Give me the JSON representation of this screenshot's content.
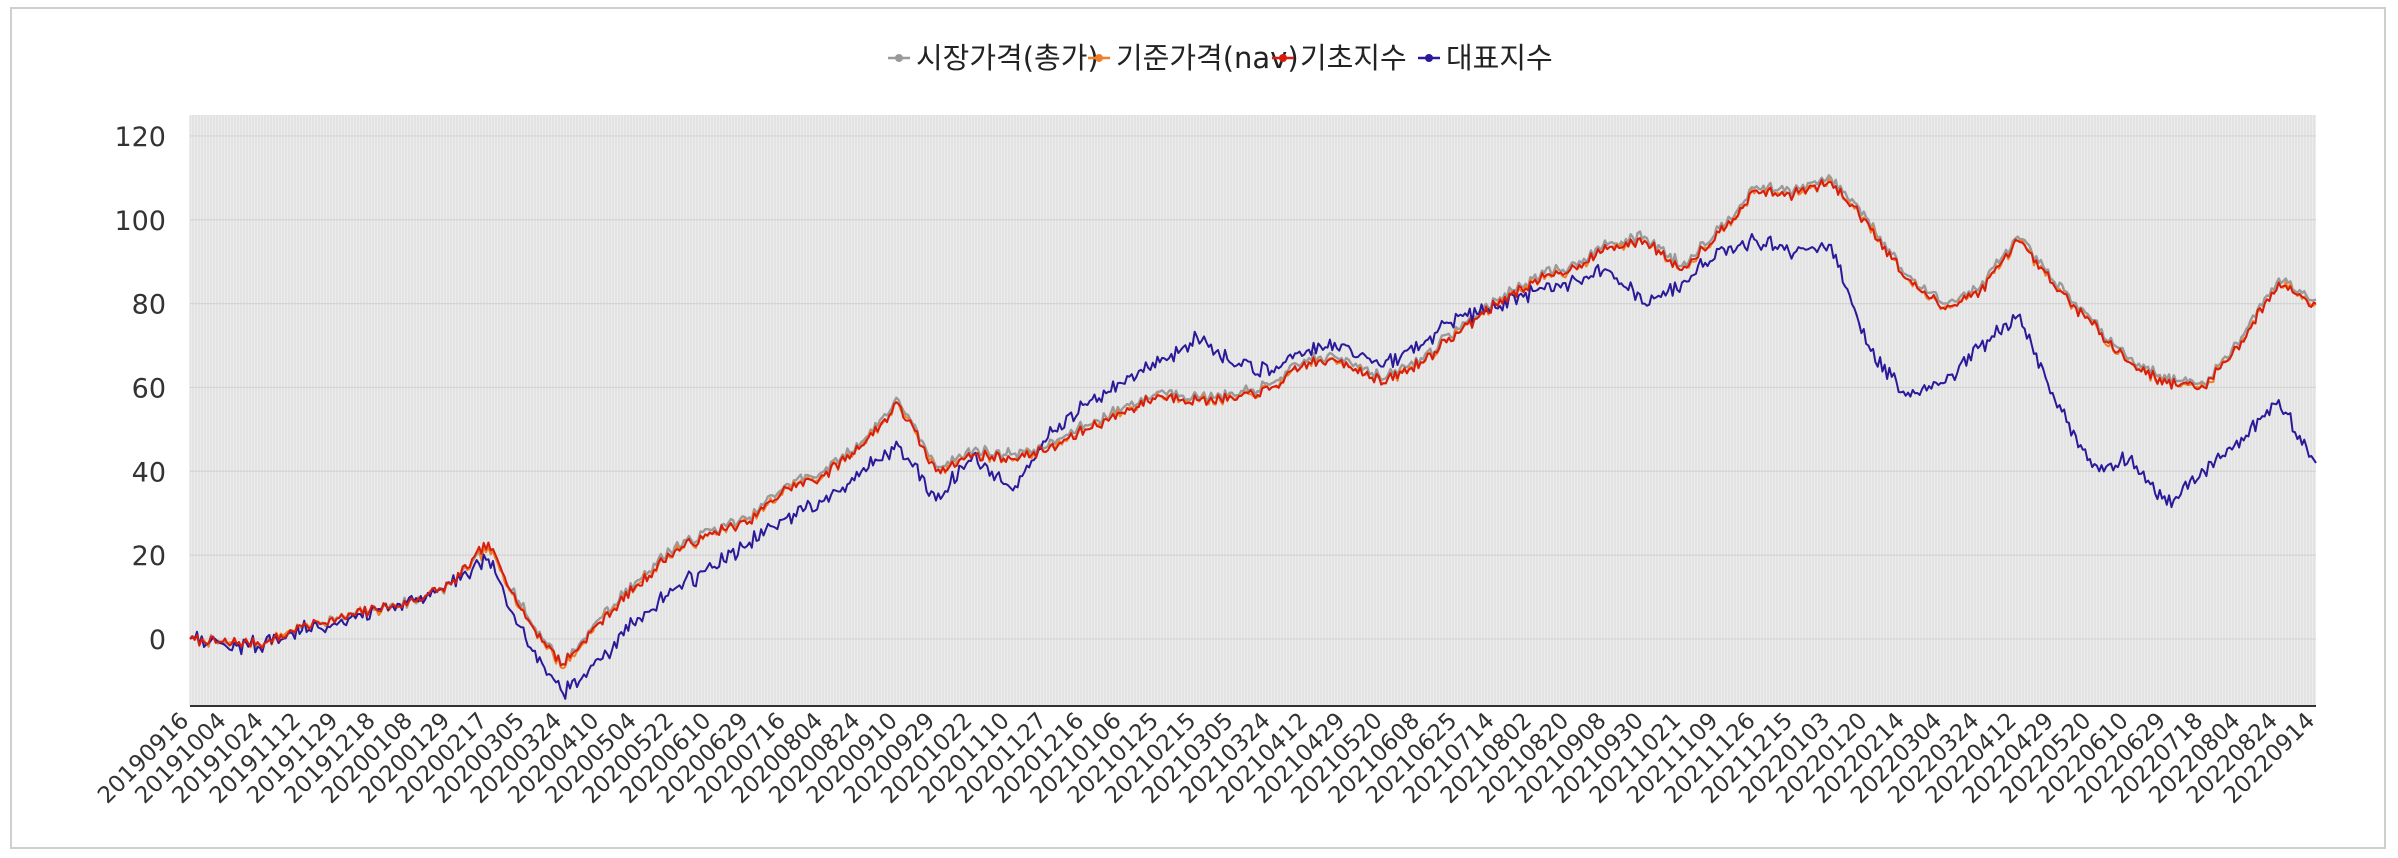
{
  "chart_data": {
    "type": "line",
    "title": "",
    "xlabel": "",
    "ylabel": "",
    "ylim": [
      -16,
      125
    ],
    "yticks": [
      0,
      20,
      40,
      60,
      80,
      100,
      120
    ],
    "grid": true,
    "legend_position": "top-center",
    "plot_background": "#ececec",
    "categories": [
      "20190916",
      "20191004",
      "20191024",
      "20191112",
      "20191129",
      "20191218",
      "20200108",
      "20200129",
      "20200217",
      "20200305",
      "20200324",
      "20200410",
      "20200504",
      "20200522",
      "20200610",
      "20200629",
      "20200716",
      "20200804",
      "20200824",
      "20200910",
      "20200929",
      "20201022",
      "20201110",
      "20201127",
      "20201216",
      "20210106",
      "20210125",
      "20210215",
      "20210305",
      "20210324",
      "20210412",
      "20210429",
      "20210520",
      "20210608",
      "20210625",
      "20210714",
      "20210802",
      "20210820",
      "20210908",
      "20210930",
      "20211021",
      "20211109",
      "20211126",
      "20211215",
      "20220103",
      "20220120",
      "20220214",
      "20220304",
      "20220324",
      "20220412",
      "20220429",
      "20220520",
      "20220610",
      "20220629",
      "20220718",
      "20220804",
      "20220824",
      "20220914"
    ],
    "series": [
      {
        "name": "시장가격(총가)",
        "color": "#9a9a9a",
        "values": [
          0,
          -1,
          -1,
          3,
          5,
          7,
          9,
          13,
          22,
          6,
          -6,
          5,
          14,
          22,
          26,
          29,
          37,
          40,
          47,
          57,
          41,
          45,
          44,
          46,
          51,
          55,
          59,
          58,
          58,
          61,
          67,
          67,
          62,
          67,
          74,
          81,
          86,
          89,
          94,
          96,
          89,
          98,
          108,
          107,
          110,
          100,
          87,
          80,
          84,
          96,
          85,
          76,
          67,
          62,
          61,
          72,
          86,
          81
        ]
      },
      {
        "name": "기준가격(nav)",
        "color": "#f07f2a",
        "values": [
          0,
          -1,
          -1,
          3,
          5,
          7,
          9,
          13,
          22,
          5,
          -7,
          4,
          13,
          21,
          25,
          28,
          36,
          39,
          46,
          56,
          40,
          44,
          43,
          45,
          50,
          54,
          58,
          57,
          57,
          60,
          66,
          66,
          61,
          66,
          73,
          80,
          85,
          88,
          93,
          95,
          88,
          97,
          107,
          106,
          109,
          99,
          86,
          79,
          83,
          95,
          84,
          75,
          66,
          61,
          60,
          71,
          85,
          80
        ]
      },
      {
        "name": "기초지수",
        "color": "#d81d0e",
        "values": [
          0,
          -1,
          -1,
          3,
          5,
          7,
          9,
          13,
          23,
          5,
          -6,
          4,
          13,
          21,
          25,
          28,
          36,
          39,
          46,
          56,
          40,
          44,
          43,
          45,
          50,
          54,
          58,
          57,
          57,
          60,
          66,
          66,
          61,
          66,
          73,
          80,
          85,
          88,
          93,
          95,
          88,
          97,
          107,
          106,
          109,
          99,
          86,
          79,
          83,
          95,
          84,
          75,
          66,
          61,
          60,
          71,
          85,
          80
        ]
      },
      {
        "name": "대표지수",
        "color": "#2a1a99",
        "values": [
          0,
          -2,
          -1,
          2,
          4,
          7,
          9,
          13,
          19,
          0,
          -13,
          -5,
          5,
          12,
          17,
          23,
          29,
          33,
          40,
          46,
          33,
          44,
          36,
          48,
          56,
          61,
          66,
          72,
          65,
          64,
          69,
          70,
          65,
          70,
          77,
          79,
          83,
          85,
          88,
          80,
          85,
          93,
          95,
          92,
          94,
          70,
          58,
          61,
          70,
          77,
          57,
          41,
          43,
          32,
          40,
          48,
          57,
          42
        ]
      }
    ]
  }
}
